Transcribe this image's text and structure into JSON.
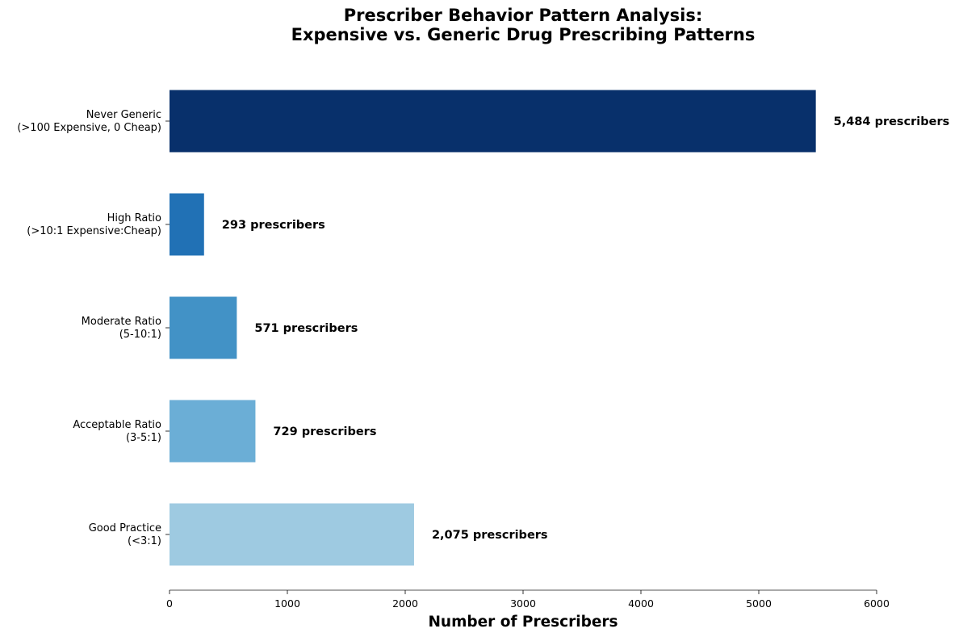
{
  "chart_data": {
    "type": "bar",
    "orientation": "horizontal",
    "title": "Prescriber Behavior Pattern Analysis:\nExpensive vs. Generic Drug Prescribing Patterns",
    "xlabel": "Number of Prescribers",
    "ylabel": "",
    "xlim": [
      0,
      6000
    ],
    "xticks": [
      0,
      1000,
      2000,
      3000,
      4000,
      5000,
      6000
    ],
    "grid": false,
    "categories": [
      [
        "Never Generic",
        "(>100 Expensive, 0 Cheap)"
      ],
      [
        "High Ratio",
        "(>10:1 Expensive:Cheap)"
      ],
      [
        "Moderate Ratio",
        "(5-10:1)"
      ],
      [
        "Acceptable Ratio",
        "(3-5:1)"
      ],
      [
        "Good Practice",
        "(<3:1)"
      ]
    ],
    "values": [
      5484,
      293,
      571,
      729,
      2075
    ],
    "data_labels": [
      "5,484 prescribers",
      "293 prescribers",
      "571 prescribers",
      "729 prescribers",
      "2,075 prescribers"
    ],
    "colors": [
      "#08306b",
      "#2171b5",
      "#4292c6",
      "#6baed6",
      "#9ecae1"
    ]
  }
}
